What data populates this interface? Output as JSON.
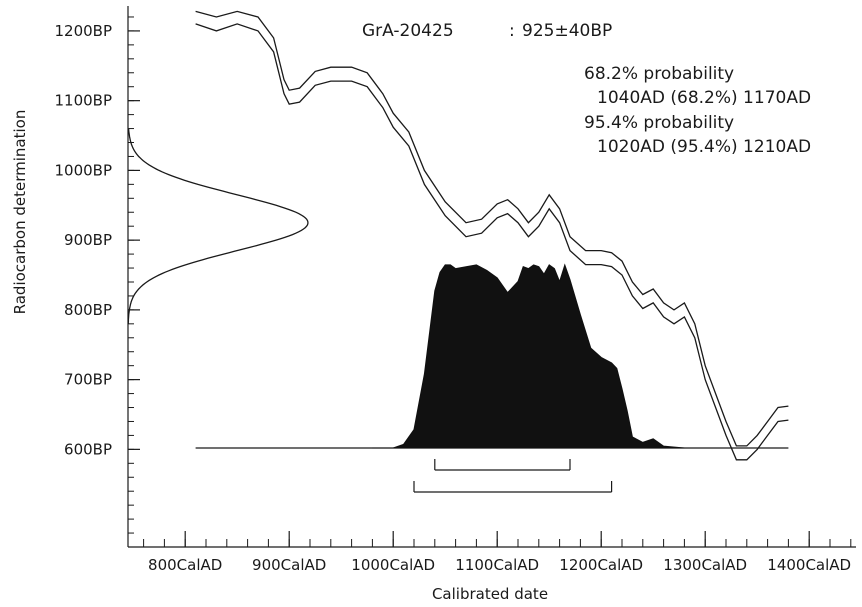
{
  "chart_data": {
    "type": "area",
    "sample": {
      "lab_code": "GrA-20425",
      "separator": ":",
      "age": "925±40BP"
    },
    "annotations": [
      {
        "label": "68.2% probability",
        "range": "1040AD (68.2%) 1170AD"
      },
      {
        "label": "95.4% probability",
        "range": "1020AD (95.4%) 1210AD"
      }
    ],
    "xlabel": "Calibrated date",
    "ylabel": "Radiocarbon determination",
    "x_ticks": [
      {
        "value": 800,
        "label": "800CalAD"
      },
      {
        "value": 900,
        "label": "900CalAD"
      },
      {
        "value": 1000,
        "label": "1000CalAD"
      },
      {
        "value": 1100,
        "label": "1100CalAD"
      },
      {
        "value": 1200,
        "label": "1200CalAD"
      },
      {
        "value": 1300,
        "label": "1300CalAD"
      },
      {
        "value": 1400,
        "label": "1400CalAD"
      }
    ],
    "y_ticks": [
      {
        "value": 1200,
        "label": "1200BP"
      },
      {
        "value": 1100,
        "label": "1100BP"
      },
      {
        "value": 1000,
        "label": "1000BP"
      },
      {
        "value": 900,
        "label": "900BP"
      },
      {
        "value": 800,
        "label": "800BP"
      },
      {
        "value": 700,
        "label": "700BP"
      },
      {
        "value": 600,
        "label": "600BP"
      }
    ],
    "xlim": [
      745,
      1445
    ],
    "ylim": [
      460,
      1230
    ],
    "calibration_curve": {
      "upper": [
        [
          810,
          1228
        ],
        [
          830,
          1220
        ],
        [
          850,
          1228
        ],
        [
          870,
          1220
        ],
        [
          885,
          1190
        ],
        [
          895,
          1130
        ],
        [
          900,
          1115
        ],
        [
          910,
          1118
        ],
        [
          925,
          1142
        ],
        [
          940,
          1148
        ],
        [
          960,
          1148
        ],
        [
          975,
          1140
        ],
        [
          990,
          1110
        ],
        [
          1000,
          1082
        ],
        [
          1015,
          1055
        ],
        [
          1030,
          1000
        ],
        [
          1050,
          955
        ],
        [
          1070,
          925
        ],
        [
          1085,
          930
        ],
        [
          1100,
          952
        ],
        [
          1110,
          958
        ],
        [
          1120,
          945
        ],
        [
          1130,
          925
        ],
        [
          1140,
          940
        ],
        [
          1150,
          965
        ],
        [
          1160,
          945
        ],
        [
          1170,
          905
        ],
        [
          1185,
          885
        ],
        [
          1200,
          885
        ],
        [
          1210,
          882
        ],
        [
          1220,
          870
        ],
        [
          1230,
          840
        ],
        [
          1240,
          822
        ],
        [
          1250,
          830
        ],
        [
          1260,
          810
        ],
        [
          1270,
          800
        ],
        [
          1280,
          810
        ],
        [
          1290,
          780
        ],
        [
          1300,
          720
        ],
        [
          1310,
          680
        ],
        [
          1320,
          640
        ],
        [
          1330,
          605
        ],
        [
          1340,
          605
        ],
        [
          1350,
          620
        ],
        [
          1360,
          640
        ],
        [
          1370,
          660
        ],
        [
          1380,
          662
        ]
      ],
      "lower": [
        [
          810,
          1210
        ],
        [
          830,
          1200
        ],
        [
          850,
          1210
        ],
        [
          870,
          1200
        ],
        [
          885,
          1170
        ],
        [
          895,
          1110
        ],
        [
          900,
          1095
        ],
        [
          910,
          1098
        ],
        [
          925,
          1122
        ],
        [
          940,
          1128
        ],
        [
          960,
          1128
        ],
        [
          975,
          1120
        ],
        [
          990,
          1090
        ],
        [
          1000,
          1062
        ],
        [
          1015,
          1035
        ],
        [
          1030,
          980
        ],
        [
          1050,
          935
        ],
        [
          1070,
          905
        ],
        [
          1085,
          910
        ],
        [
          1100,
          932
        ],
        [
          1110,
          938
        ],
        [
          1120,
          925
        ],
        [
          1130,
          905
        ],
        [
          1140,
          920
        ],
        [
          1150,
          945
        ],
        [
          1160,
          925
        ],
        [
          1170,
          885
        ],
        [
          1185,
          865
        ],
        [
          1200,
          865
        ],
        [
          1210,
          862
        ],
        [
          1220,
          850
        ],
        [
          1230,
          820
        ],
        [
          1240,
          802
        ],
        [
          1250,
          810
        ],
        [
          1260,
          790
        ],
        [
          1270,
          780
        ],
        [
          1280,
          790
        ],
        [
          1290,
          760
        ],
        [
          1300,
          700
        ],
        [
          1310,
          660
        ],
        [
          1320,
          620
        ],
        [
          1330,
          585
        ],
        [
          1340,
          585
        ],
        [
          1350,
          600
        ],
        [
          1360,
          620
        ],
        [
          1370,
          640
        ],
        [
          1380,
          642
        ]
      ]
    },
    "radiocarbon_distribution": {
      "mean_bp": 925,
      "sigma_bp": 40
    },
    "calibrated_distribution": {
      "baseline_x_range": [
        810,
        1380
      ],
      "points": [
        [
          980,
          0
        ],
        [
          1000,
          0
        ],
        [
          1010,
          2
        ],
        [
          1020,
          10
        ],
        [
          1030,
          40
        ],
        [
          1040,
          85
        ],
        [
          1045,
          95
        ],
        [
          1050,
          99
        ],
        [
          1055,
          99
        ],
        [
          1060,
          97
        ],
        [
          1070,
          98
        ],
        [
          1080,
          99
        ],
        [
          1090,
          96
        ],
        [
          1100,
          92
        ],
        [
          1110,
          84
        ],
        [
          1120,
          90
        ],
        [
          1125,
          98
        ],
        [
          1130,
          97
        ],
        [
          1135,
          99
        ],
        [
          1140,
          98
        ],
        [
          1145,
          94
        ],
        [
          1150,
          99
        ],
        [
          1155,
          97
        ],
        [
          1160,
          90
        ],
        [
          1165,
          99
        ],
        [
          1170,
          91
        ],
        [
          1180,
          72
        ],
        [
          1190,
          54
        ],
        [
          1200,
          49
        ],
        [
          1210,
          46
        ],
        [
          1215,
          43
        ],
        [
          1220,
          32
        ],
        [
          1225,
          20
        ],
        [
          1230,
          6
        ],
        [
          1240,
          3
        ],
        [
          1250,
          5
        ],
        [
          1260,
          1
        ],
        [
          1280,
          0
        ]
      ]
    },
    "ranges": [
      {
        "probability": 68.2,
        "from": 1040,
        "to": 1170
      },
      {
        "probability": 95.4,
        "from": 1020,
        "to": 1210
      }
    ],
    "grid": false,
    "legend": "none"
  }
}
